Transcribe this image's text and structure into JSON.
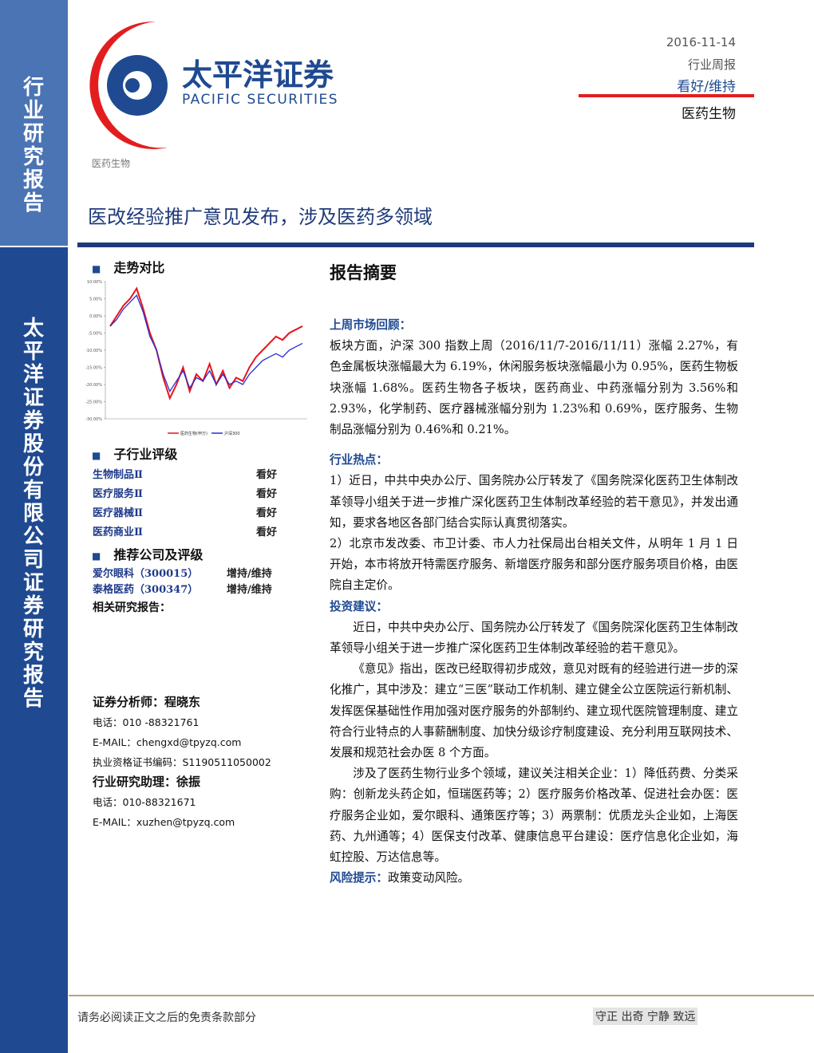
{
  "sidebar": {
    "top": "行业研究报告",
    "bottom": "太平洋证券股份有限公司证券研究报告"
  },
  "logo": {
    "name_cn": "太平洋证券",
    "name_en": "PACIFIC SECURITIES"
  },
  "header": {
    "date": "2016-11-14",
    "report_type": "行业周报",
    "rating": "看好/维持",
    "industry": "医药生物"
  },
  "breadcrumb": "医药生物",
  "title": "医改经验推广意见发布，涉及医药多领域",
  "trend_heading": "走势对比",
  "chart_data": {
    "type": "line",
    "yticks": [
      {
        "value": 10,
        "label": "10.00%"
      },
      {
        "value": 5,
        "label": "5.00%"
      },
      {
        "value": 0,
        "label": "0.00%"
      },
      {
        "value": -5,
        "label": "-5.00%"
      },
      {
        "value": -10,
        "label": "-10.00%"
      },
      {
        "value": -15,
        "label": "-15.00%"
      },
      {
        "value": -20,
        "label": "-20.00%"
      },
      {
        "value": -25,
        "label": "-25.00%"
      },
      {
        "value": -30,
        "label": "-30.00%"
      }
    ],
    "ylim": [
      -30,
      10
    ],
    "series": [
      {
        "name": "医药生物(申万)",
        "color": "#e8141b",
        "values": [
          -3,
          0,
          3,
          5,
          8,
          2,
          -5,
          -10,
          -18,
          -24,
          -20,
          -15,
          -22,
          -17,
          -19,
          -14,
          -20,
          -16,
          -21,
          -18,
          -19,
          -15,
          -12,
          -10,
          -8,
          -6,
          -7,
          -5,
          -4,
          -3
        ]
      },
      {
        "name": "沪深300",
        "color": "#2a2bd6",
        "values": [
          -3,
          -1,
          2,
          4,
          6,
          1,
          -6,
          -10,
          -17,
          -22,
          -19,
          -16,
          -21,
          -18,
          -19,
          -16,
          -20,
          -17,
          -20,
          -19,
          -20,
          -17,
          -15,
          -13,
          -12,
          -11,
          -12,
          -10,
          -9,
          -8
        ]
      }
    ]
  },
  "sub_industry": {
    "heading": "子行业评级",
    "rows": [
      [
        "生物制品Ⅱ",
        "看好"
      ],
      [
        "医疗服务Ⅱ",
        "看好"
      ],
      [
        "医疗器械Ⅱ",
        "看好"
      ],
      [
        "医药商业Ⅱ",
        "看好"
      ]
    ]
  },
  "recommend": {
    "heading": "推荐公司及评级",
    "rows": [
      [
        "爱尔眼科（300015）",
        "增持/维持"
      ],
      [
        "泰格医药（300347）",
        "增持/维持"
      ]
    ]
  },
  "related": "相关研究报告：",
  "contacts": [
    "证券分析师：程晓东",
    "电话：010 -88321761",
    "E-MAIL：chengxd@tpyzq.com",
    "执业资格证书编码：S1190511050002",
    "行业研究助理：徐振",
    "电话：010-88321671",
    "E-MAIL：xuzhen@tpyzq.com"
  ],
  "summary": {
    "heading": "报告摘要",
    "market": {
      "heading": "上周市场回顾：",
      "paragraphs": [
        "板块方面，沪深 300 指数上周（2016/11/7-2016/11/11）涨幅 2.27%，有色金属板块涨幅最大为 6.19%，休闲服务板块涨幅最小为 0.95%，医药生物板块涨幅 1.68%。医药生物各子板块，医药商业、中药涨幅分别为 3.56%和 2.93%，化学制药、医疗器械涨幅分别为 1.23%和 0.69%，医疗服务、生物制品涨幅分别为 0.46%和 0.21%。"
      ]
    },
    "hot": {
      "heading": "行业热点：",
      "paragraphs": [
        "1）近日，中共中央办公厅、国务院办公厅转发了《国务院深化医药卫生体制改革领导小组关于进一步推广深化医药卫生体制改革经验的若干意见》，并发出通知，要求各地区各部门结合实际认真贯彻落实。",
        "2）北京市发改委、市卫计委、市人力社保局出台相关文件，从明年 1 月 1 日开始，本市将放开特需医疗服务、新增医疗服务和部分医疗服务项目价格，由医院自主定价。"
      ]
    },
    "advice": {
      "heading": "投资建议：",
      "paragraphs": [
        "近日，中共中央办公厅、国务院办公厅转发了《国务院深化医药卫生体制改革领导小组关于进一步推广深化医药卫生体制改革经验的若干意见》。",
        "《意见》指出，医改已经取得初步成效，意见对既有的经验进行进一步的深化推广，其中涉及：建立“三医”联动工作机制、建立健全公立医院运行新机制、发挥医保基础性作用加强对医疗服务的外部制约、建立现代医院管理制度、建立符合行业特点的人事薪酬制度、加快分级诊疗制度建设、充分利用互联网技术、发展和规范社会办医 8 个方面。",
        "涉及了医药生物行业多个领域，建议关注相关企业：1）降低药费、分类采购：创新龙头药企如，恒瑞医药等；2）医疗服务价格改革、促进社会办医：医疗服务企业如，爱尔眼科、通策医疗等；3）两票制：优质龙头企业如，上海医药、九州通等；4）医保支付改革、健康信息平台建设：医疗信息化企业如，海虹控股、万达信息等。"
      ]
    },
    "risk": {
      "heading": "风险提示：",
      "text": "政策变动风险。"
    }
  },
  "footer": {
    "disclaimer": "请务必阅读正文之后的免责条款部分",
    "motto": "守正 出奇 宁静 致远"
  }
}
